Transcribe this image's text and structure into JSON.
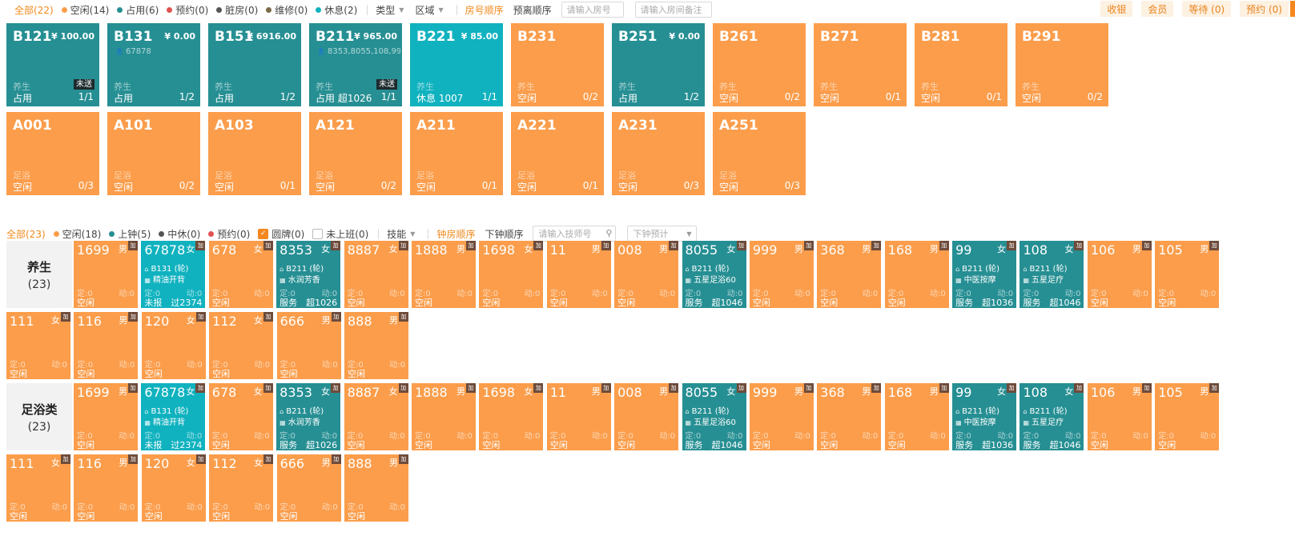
{
  "room_filter": {
    "all": "全部(22)",
    "statuses": [
      {
        "label": "空闲(14)",
        "color": "#fb9d4b"
      },
      {
        "label": "占用(6)",
        "color": "#268f93"
      },
      {
        "label": "预约(0)",
        "color": "#e05252"
      },
      {
        "label": "脏房(0)",
        "color": "#555555"
      },
      {
        "label": "维修(0)",
        "color": "#7a6a4a"
      },
      {
        "label": "休息(2)",
        "color": "#10b2bf"
      }
    ],
    "type_label": "类型",
    "area_label": "区域",
    "sort_room": "房号顺序",
    "sort_checkout": "预离顺序",
    "room_input_placeholder": "请输入房号",
    "note_input_placeholder": "请输入房间备注"
  },
  "actions": {
    "cashier": "收银",
    "member": "会员",
    "waiting": "等待 (0)",
    "booking": "预约 (0)"
  },
  "rooms": [
    {
      "name": "B121",
      "price": "¥ 100.00",
      "guest": "",
      "type": "养生",
      "status": "占用",
      "extra": "",
      "count": "1/1",
      "badge": "未送",
      "state": "busy"
    },
    {
      "name": "B131",
      "price": "¥ 0.00",
      "guest": "67878",
      "type": "养生",
      "status": "占用",
      "extra": "",
      "count": "1/2",
      "badge": "",
      "state": "busy"
    },
    {
      "name": "B151",
      "price": "¥ 6916.00",
      "guest": "",
      "type": "养生",
      "status": "占用",
      "extra": "",
      "count": "1/2",
      "badge": "",
      "state": "busy"
    },
    {
      "name": "B211",
      "price": "¥ 965.00",
      "guest": "8353,8055,108,99",
      "type": "养生",
      "status": "占用",
      "extra": "超1026",
      "count": "1/1",
      "badge": "未送",
      "state": "busy"
    },
    {
      "name": "B221",
      "price": "¥ 85.00",
      "guest": "",
      "type": "养生",
      "status": "休息",
      "extra": "1007",
      "count": "1/1",
      "badge": "",
      "state": "rest"
    },
    {
      "name": "B231",
      "price": "",
      "guest": "",
      "type": "养生",
      "status": "空闲",
      "extra": "",
      "count": "0/2",
      "badge": "",
      "state": "free"
    },
    {
      "name": "B251",
      "price": "¥ 0.00",
      "guest": "",
      "type": "养生",
      "status": "占用",
      "extra": "",
      "count": "1/2",
      "badge": "",
      "state": "busy"
    },
    {
      "name": "B261",
      "price": "",
      "guest": "",
      "type": "养生",
      "status": "空闲",
      "extra": "",
      "count": "0/2",
      "badge": "",
      "state": "free"
    },
    {
      "name": "B271",
      "price": "",
      "guest": "",
      "type": "养生",
      "status": "空闲",
      "extra": "",
      "count": "0/1",
      "badge": "",
      "state": "free"
    },
    {
      "name": "B281",
      "price": "",
      "guest": "",
      "type": "养生",
      "status": "空闲",
      "extra": "",
      "count": "0/1",
      "badge": "",
      "state": "free"
    },
    {
      "name": "B291",
      "price": "",
      "guest": "",
      "type": "养生",
      "status": "空闲",
      "extra": "",
      "count": "0/2",
      "badge": "",
      "state": "free"
    },
    {
      "name": "A001",
      "price": "",
      "guest": "",
      "type": "足浴",
      "status": "空闲",
      "extra": "",
      "count": "0/3",
      "badge": "",
      "state": "free"
    },
    {
      "name": "A101",
      "price": "",
      "guest": "",
      "type": "足浴",
      "status": "空闲",
      "extra": "",
      "count": "0/2",
      "badge": "",
      "state": "free"
    },
    {
      "name": "A103",
      "price": "",
      "guest": "",
      "type": "足浴",
      "status": "空闲",
      "extra": "",
      "count": "0/1",
      "badge": "",
      "state": "free"
    },
    {
      "name": "A121",
      "price": "",
      "guest": "",
      "type": "足浴",
      "status": "空闲",
      "extra": "",
      "count": "0/2",
      "badge": "",
      "state": "free"
    },
    {
      "name": "A211",
      "price": "",
      "guest": "",
      "type": "足浴",
      "status": "空闲",
      "extra": "",
      "count": "0/1",
      "badge": "",
      "state": "free"
    },
    {
      "name": "A221",
      "price": "",
      "guest": "",
      "type": "足浴",
      "status": "空闲",
      "extra": "",
      "count": "0/1",
      "badge": "",
      "state": "free"
    },
    {
      "name": "A231",
      "price": "",
      "guest": "",
      "type": "足浴",
      "status": "空闲",
      "extra": "",
      "count": "0/3",
      "badge": "",
      "state": "free"
    },
    {
      "name": "A251",
      "price": "",
      "guest": "",
      "type": "足浴",
      "status": "空闲",
      "extra": "",
      "count": "0/3",
      "badge": "",
      "state": "free"
    }
  ],
  "tech_filter": {
    "all": "全部(23)",
    "statuses": [
      {
        "label": "空闲(18)",
        "color": "#fb9d4b"
      },
      {
        "label": "上钟(5)",
        "color": "#268f93"
      },
      {
        "label": "中休(0)",
        "color": "#555555"
      },
      {
        "label": "预约(0)",
        "color": "#e05252"
      }
    ],
    "card_label": "圆牌(0)",
    "off_label": "未上班(0)",
    "skill_label": "技能",
    "sort_clock": "钟房顺序",
    "sort_next": "下钟顺序",
    "tech_input_placeholder": "请输入技师号",
    "next_placeholder": "下钟预计"
  },
  "groups": [
    {
      "name": "养生",
      "count": "(23)"
    },
    {
      "name": "足浴类",
      "count": "(23)"
    }
  ],
  "technicians": [
    {
      "num": "1699",
      "gender": "男",
      "tag": "加",
      "room": "",
      "service": "",
      "fixed": "定:0",
      "dyn": "动:0",
      "status": "空闲",
      "extra": "",
      "state": "free"
    },
    {
      "num": "67878",
      "gender": "女",
      "tag": "加",
      "room": "B131 (轮)",
      "service": "精油开背",
      "fixed": "定:0",
      "dyn": "动:0",
      "status": "未报",
      "extra": "过2374",
      "state": "report"
    },
    {
      "num": "678",
      "gender": "女",
      "tag": "加",
      "room": "",
      "service": "",
      "fixed": "定:0",
      "dyn": "动:0",
      "status": "空闲",
      "extra": "",
      "state": "free"
    },
    {
      "num": "8353",
      "gender": "女",
      "tag": "加",
      "room": "B211 (轮)",
      "service": "水润芳香",
      "fixed": "定:0",
      "dyn": "动:0",
      "status": "服务",
      "extra": "超1026",
      "state": "busy"
    },
    {
      "num": "8887",
      "gender": "女",
      "tag": "加",
      "room": "",
      "service": "",
      "fixed": "定:0",
      "dyn": "动:0",
      "status": "空闲",
      "extra": "",
      "state": "free"
    },
    {
      "num": "1888",
      "gender": "男",
      "tag": "加",
      "room": "",
      "service": "",
      "fixed": "定:0",
      "dyn": "动:0",
      "status": "空闲",
      "extra": "",
      "state": "free"
    },
    {
      "num": "1698",
      "gender": "女",
      "tag": "加",
      "room": "",
      "service": "",
      "fixed": "定:0",
      "dyn": "动:0",
      "status": "空闲",
      "extra": "",
      "state": "free"
    },
    {
      "num": "11",
      "gender": "男",
      "tag": "加",
      "room": "",
      "service": "",
      "fixed": "定:0",
      "dyn": "动:0",
      "status": "空闲",
      "extra": "",
      "state": "free"
    },
    {
      "num": "008",
      "gender": "男",
      "tag": "加",
      "room": "",
      "service": "",
      "fixed": "定:0",
      "dyn": "动:0",
      "status": "空闲",
      "extra": "",
      "state": "free"
    },
    {
      "num": "8055",
      "gender": "女",
      "tag": "加",
      "room": "B211 (轮)",
      "service": "五星足浴60",
      "fixed": "定:0",
      "dyn": "动:0",
      "status": "服务",
      "extra": "超1046",
      "state": "busy"
    },
    {
      "num": "999",
      "gender": "男",
      "tag": "加",
      "room": "",
      "service": "",
      "fixed": "定:0",
      "dyn": "动:0",
      "status": "空闲",
      "extra": "",
      "state": "free"
    },
    {
      "num": "368",
      "gender": "男",
      "tag": "加",
      "room": "",
      "service": "",
      "fixed": "定:0",
      "dyn": "动:0",
      "status": "空闲",
      "extra": "",
      "state": "free"
    },
    {
      "num": "168",
      "gender": "男",
      "tag": "加",
      "room": "",
      "service": "",
      "fixed": "定:0",
      "dyn": "动:0",
      "status": "空闲",
      "extra": "",
      "state": "free"
    },
    {
      "num": "99",
      "gender": "女",
      "tag": "加",
      "room": "B211 (轮)",
      "service": "中医按摩",
      "fixed": "定:0",
      "dyn": "动:0",
      "status": "服务",
      "extra": "超1036",
      "state": "busy"
    },
    {
      "num": "108",
      "gender": "女",
      "tag": "加",
      "room": "B211 (轮)",
      "service": "五星足疗",
      "fixed": "定:0",
      "dyn": "动:0",
      "status": "服务",
      "extra": "超1046",
      "state": "busy"
    },
    {
      "num": "106",
      "gender": "男",
      "tag": "加",
      "room": "",
      "service": "",
      "fixed": "定:0",
      "dyn": "动:0",
      "status": "空闲",
      "extra": "",
      "state": "free"
    },
    {
      "num": "105",
      "gender": "男",
      "tag": "加",
      "room": "",
      "service": "",
      "fixed": "定:0",
      "dyn": "动:0",
      "status": "空闲",
      "extra": "",
      "state": "free"
    },
    {
      "num": "111",
      "gender": "女",
      "tag": "加",
      "room": "",
      "service": "",
      "fixed": "定:0",
      "dyn": "动:0",
      "status": "空闲",
      "extra": "",
      "state": "free"
    },
    {
      "num": "116",
      "gender": "男",
      "tag": "加",
      "room": "",
      "service": "",
      "fixed": "定:0",
      "dyn": "动:0",
      "status": "空闲",
      "extra": "",
      "state": "free"
    },
    {
      "num": "120",
      "gender": "女",
      "tag": "加",
      "room": "",
      "service": "",
      "fixed": "定:0",
      "dyn": "动:0",
      "status": "空闲",
      "extra": "",
      "state": "free"
    },
    {
      "num": "112",
      "gender": "女",
      "tag": "加",
      "room": "",
      "service": "",
      "fixed": "定:0",
      "dyn": "动:0",
      "status": "空闲",
      "extra": "",
      "state": "free"
    },
    {
      "num": "666",
      "gender": "男",
      "tag": "加",
      "room": "",
      "service": "",
      "fixed": "定:0",
      "dyn": "动:0",
      "status": "空闲",
      "extra": "",
      "state": "free"
    },
    {
      "num": "888",
      "gender": "男",
      "tag": "加",
      "room": "",
      "service": "",
      "fixed": "定:0",
      "dyn": "动:0",
      "status": "空闲",
      "extra": "",
      "state": "free"
    }
  ]
}
